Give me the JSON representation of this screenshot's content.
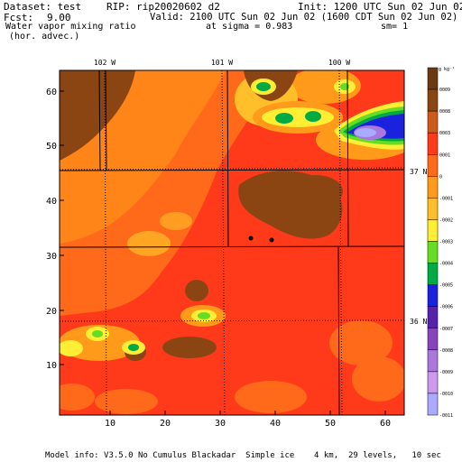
{
  "header": {
    "dataset": "Dataset: test",
    "rip": "RIP: rip20020602 d2",
    "init": "Init: 1200 UTC Sun 02 Jun 02",
    "fcst_label": "Fcst:",
    "fcst_value": "9.00",
    "valid": "Valid: 2100 UTC Sun 02 Jun 02 (1600 CDT Sun 02 Jun 02)",
    "field_name_line1": "Water vapor mixing ratio",
    "field_name_line2": "(hor. advec.)",
    "sigma": "at sigma = 0.983",
    "sm": "sm= 1"
  },
  "map": {
    "top_lon_labels": [
      "102 W",
      "101 W",
      "100 W"
    ],
    "right_lat_labels": [
      "37 N",
      "36 N"
    ],
    "y_ticks": [
      "10",
      "20",
      "30",
      "40",
      "50",
      "60"
    ],
    "x_ticks": [
      "10",
      "20",
      "30",
      "40",
      "50",
      "60"
    ],
    "stations": [
      "station-1",
      "station-2"
    ]
  },
  "legend": {
    "unit": "g kg⁻¹",
    "levels": [
      {
        "label": "0009",
        "color": "#6b3a12"
      },
      {
        "label": "0008",
        "color": "#8b4513"
      },
      {
        "label": "0003",
        "color": "#cc5a1a"
      },
      {
        "label": "0001",
        "color": "#ff3a1a"
      },
      {
        "label": "0",
        "color": "#ff6a1a"
      },
      {
        "label": "-0001",
        "color": "#ff9a1a"
      },
      {
        "label": "-0002",
        "color": "#ffbf2a"
      },
      {
        "label": "-0003",
        "color": "#ffee33"
      },
      {
        "label": "-0004",
        "color": "#66dd22"
      },
      {
        "label": "-0005",
        "color": "#00aa44"
      },
      {
        "label": "-0006",
        "color": "#1a22dd"
      },
      {
        "label": "-0007",
        "color": "#5522aa"
      },
      {
        "label": "-0008",
        "color": "#8844bb"
      },
      {
        "label": "-0009",
        "color": "#aa77dd"
      },
      {
        "label": "-0010",
        "color": "#cc99ee"
      },
      {
        "label": "-0011",
        "color": "#aaaaff"
      }
    ]
  },
  "footer": "Model info: V3.5.0 No Cumulus Blackadar  Simple ice    4 km,  29 levels,   10 sec"
}
